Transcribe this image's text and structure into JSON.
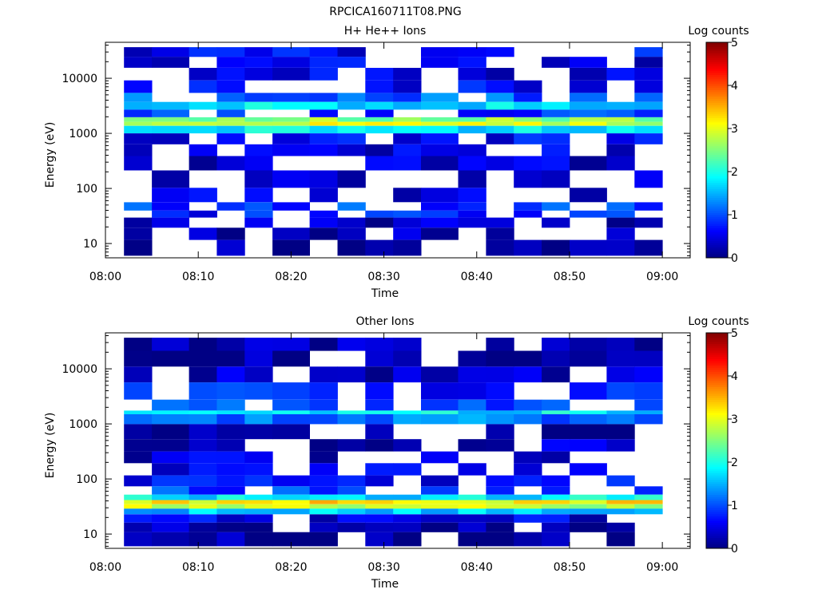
{
  "figure_title": "RPCICA160711T08.PNG",
  "chart_data": [
    {
      "type": "heatmap",
      "title": "H+ He++ Ions",
      "xlabel": "Time",
      "ylabel": "Energy (eV)",
      "y_scale": "log",
      "xlim": [
        "08:00",
        "09:03"
      ],
      "ylim": [
        5.5,
        45000
      ],
      "x_ticks": [
        "08:00",
        "08:10",
        "08:20",
        "08:30",
        "08:40",
        "08:50",
        "09:00"
      ],
      "y_ticks": [
        "10",
        "100",
        "1000",
        "10000"
      ],
      "colorbar": {
        "label": "Log counts",
        "range": [
          0,
          5
        ],
        "ticks": [
          "0",
          "1",
          "2",
          "3",
          "4",
          "5"
        ]
      },
      "time_bins": [
        "08:02–08:05",
        "08:05–08:09",
        "08:09–08:12",
        "08:12–08:15",
        "08:15–08:18",
        "08:18–08:22",
        "08:22–08:25",
        "08:25–08:28",
        "08:28–08:31",
        "08:31–08:34",
        "08:34–08:38",
        "08:38–08:41",
        "08:41–08:44",
        "08:44–08:47",
        "08:47–08:50",
        "08:50–08:54",
        "08:54–08:57",
        "08:57–09:00"
      ],
      "energy_bands_ev": [
        {
          "energy": 30000,
          "log_counts": 0.6
        },
        {
          "energy": 20000,
          "log_counts": 0.5
        },
        {
          "energy": 12000,
          "log_counts": 0.5
        },
        {
          "energy": 7000,
          "log_counts": 0.6
        },
        {
          "energy": 4200,
          "log_counts": 1.1
        },
        {
          "energy": 3300,
          "log_counts": 1.7
        },
        {
          "energy": 2200,
          "log_counts": 0.9
        },
        {
          "energy": 1750,
          "log_counts": 2.6
        },
        {
          "energy": 1500,
          "log_counts": 2.9
        },
        {
          "energy": 1250,
          "log_counts": 1.8
        },
        {
          "energy": 800,
          "log_counts": 0.6
        },
        {
          "energy": 500,
          "log_counts": 0.5
        },
        {
          "energy": 300,
          "log_counts": 0.4
        },
        {
          "energy": 150,
          "log_counts": 0.4
        },
        {
          "energy": 70,
          "log_counts": 0.4
        },
        {
          "energy": 45,
          "log_counts": 0.9
        },
        {
          "energy": 35,
          "log_counts": 0.7
        },
        {
          "energy": 25,
          "log_counts": 0.3
        },
        {
          "energy": 15,
          "log_counts": 0.2
        },
        {
          "energy": 9,
          "log_counts": 0.1
        }
      ]
    },
    {
      "type": "heatmap",
      "title": "Other Ions",
      "xlabel": "Time",
      "ylabel": "Energy (eV)",
      "y_scale": "log",
      "xlim": [
        "08:00",
        "09:03"
      ],
      "ylim": [
        5.5,
        45000
      ],
      "x_ticks": [
        "08:00",
        "08:10",
        "08:20",
        "08:30",
        "08:40",
        "08:50",
        "09:00"
      ],
      "y_ticks": [
        "10",
        "100",
        "1000",
        "10000"
      ],
      "colorbar": {
        "label": "Log counts",
        "range": [
          0,
          5
        ],
        "ticks": [
          "0",
          "1",
          "2",
          "3",
          "4",
          "5"
        ]
      },
      "time_bins": [
        "08:02–08:05",
        "08:05–08:09",
        "08:09–08:12",
        "08:12–08:15",
        "08:15–08:18",
        "08:18–08:22",
        "08:22–08:25",
        "08:25–08:28",
        "08:28–08:31",
        "08:31–08:34",
        "08:34–08:38",
        "08:38–08:41",
        "08:41–08:44",
        "08:44–08:47",
        "08:47–08:50",
        "08:50–08:54",
        "08:54–08:57",
        "08:57–09:00"
      ],
      "energy_bands_ev": [
        {
          "energy": 30000,
          "log_counts": 0.2
        },
        {
          "energy": 15000,
          "log_counts": 0.2
        },
        {
          "energy": 8000,
          "log_counts": 0.3
        },
        {
          "energy": 4000,
          "log_counts": 0.8
        },
        {
          "energy": 1900,
          "log_counts": 1.0
        },
        {
          "energy": 1600,
          "log_counts": 1.8
        },
        {
          "energy": 1400,
          "log_counts": 1.2
        },
        {
          "energy": 700,
          "log_counts": 0.2
        },
        {
          "energy": 400,
          "log_counts": 0.3
        },
        {
          "energy": 250,
          "log_counts": 0.4
        },
        {
          "energy": 150,
          "log_counts": 0.5
        },
        {
          "energy": 90,
          "log_counts": 0.6
        },
        {
          "energy": 60,
          "log_counts": 0.9
        },
        {
          "energy": 45,
          "log_counts": 1.8
        },
        {
          "energy": 38,
          "log_counts": 3.2
        },
        {
          "energy": 32,
          "log_counts": 2.8
        },
        {
          "energy": 26,
          "log_counts": 1.6
        },
        {
          "energy": 20,
          "log_counts": 0.5
        },
        {
          "energy": 13,
          "log_counts": 0.2
        },
        {
          "energy": 9,
          "log_counts": 0.1
        }
      ]
    }
  ]
}
